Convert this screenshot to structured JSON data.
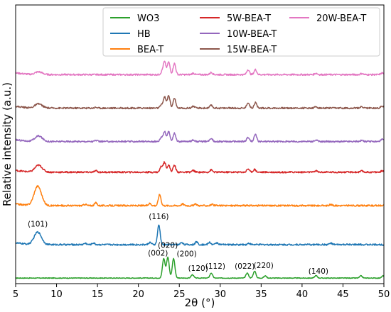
{
  "chart_data": {
    "type": "line",
    "xlabel": "2θ (°)",
    "ylabel": "Relative intensity (a.u.)",
    "xlim": [
      5,
      50
    ],
    "ylim": [
      0,
      100
    ],
    "xticks": [
      5,
      10,
      15,
      20,
      25,
      30,
      35,
      40,
      45,
      50
    ],
    "x_tick_labels": [
      "5",
      "10",
      "15",
      "20",
      "25",
      "30",
      "35",
      "40",
      "45",
      "50"
    ],
    "y_tick_labels_shown": false,
    "grid": false,
    "legend": {
      "placement": "top-right",
      "columns": 3,
      "entries": [
        "WO3",
        "HB",
        "BEA-T",
        "5W-BEA-T",
        "10W-BEA-T",
        "15W-BEA-T",
        "20W-BEA-T"
      ]
    },
    "series": [
      {
        "name": "WO3",
        "color": "#2ca02c",
        "baseline": 2,
        "peaks": [
          [
            23.1,
            7
          ],
          [
            23.6,
            7.5
          ],
          [
            24.3,
            7
          ],
          [
            26.6,
            1.2
          ],
          [
            28.9,
            1.8
          ],
          [
            33.3,
            1.8
          ],
          [
            34.2,
            2.5
          ],
          [
            35.5,
            0.8
          ],
          [
            41.7,
            0.9
          ],
          [
            47.2,
            0.8
          ],
          [
            49.9,
            0.8
          ]
        ]
      },
      {
        "name": "HB",
        "color": "#1f77b4",
        "baseline": 14,
        "peaks": [
          [
            7.7,
            4.5
          ],
          [
            13.5,
            0.5
          ],
          [
            14.5,
            0.6
          ],
          [
            21.4,
            0.8
          ],
          [
            22.5,
            7
          ],
          [
            25.3,
            0.8
          ],
          [
            27.1,
            1.0
          ],
          [
            28.7,
            0.8
          ],
          [
            29.6,
            0.7
          ],
          [
            33.5,
            0.5
          ],
          [
            43.5,
            0.5
          ]
        ]
      },
      {
        "name": "BEA-T",
        "color": "#ff7f0e",
        "baseline": 28,
        "peaks": [
          [
            7.7,
            7
          ],
          [
            13.5,
            0.5
          ],
          [
            14.8,
            1.0
          ],
          [
            21.4,
            0.8
          ],
          [
            22.6,
            4
          ],
          [
            25.4,
            0.6
          ],
          [
            27.0,
            0.5
          ],
          [
            29.0,
            0.4
          ],
          [
            43.5,
            0.4
          ]
        ]
      },
      {
        "name": "5W-BEA-T",
        "color": "#d62728",
        "baseline": 40,
        "peaks": [
          [
            7.8,
            2.5
          ],
          [
            14.8,
            0.5
          ],
          [
            22.8,
            2.0
          ],
          [
            23.2,
            3.5
          ],
          [
            23.7,
            2.5
          ],
          [
            24.4,
            2.5
          ],
          [
            26.7,
            0.6
          ],
          [
            28.9,
            0.8
          ],
          [
            33.4,
            1.2
          ],
          [
            34.2,
            1.0
          ],
          [
            41.7,
            0.5
          ],
          [
            47.3,
            0.4
          ],
          [
            49.8,
            0.5
          ]
        ]
      },
      {
        "name": "10W-BEA-T",
        "color": "#9467bd",
        "baseline": 51,
        "peaks": [
          [
            7.8,
            2.0
          ],
          [
            14.8,
            0.4
          ],
          [
            22.8,
            1.5
          ],
          [
            23.2,
            3.5
          ],
          [
            23.7,
            3.5
          ],
          [
            24.4,
            3.0
          ],
          [
            26.7,
            0.6
          ],
          [
            28.9,
            1.2
          ],
          [
            33.4,
            1.5
          ],
          [
            34.3,
            2.5
          ],
          [
            41.7,
            0.5
          ],
          [
            47.3,
            0.4
          ],
          [
            49.8,
            0.8
          ]
        ]
      },
      {
        "name": "15W-BEA-T",
        "color": "#8c564b",
        "baseline": 63,
        "peaks": [
          [
            7.8,
            1.5
          ],
          [
            14.8,
            0.3
          ],
          [
            22.8,
            1.0
          ],
          [
            23.2,
            4.0
          ],
          [
            23.7,
            4.5
          ],
          [
            24.4,
            3.5
          ],
          [
            26.7,
            0.7
          ],
          [
            28.9,
            1.0
          ],
          [
            33.4,
            2.0
          ],
          [
            34.3,
            2.0
          ],
          [
            41.7,
            0.5
          ],
          [
            47.3,
            0.5
          ],
          [
            49.8,
            0.8
          ]
        ]
      },
      {
        "name": "20W-BEA-T",
        "color": "#e377c2",
        "baseline": 75,
        "peaks": [
          [
            7.8,
            1.0
          ],
          [
            22.9,
            1.0
          ],
          [
            23.2,
            4.5
          ],
          [
            23.7,
            4.5
          ],
          [
            24.4,
            4.0
          ],
          [
            26.7,
            0.5
          ],
          [
            28.9,
            0.8
          ],
          [
            33.4,
            1.8
          ],
          [
            34.3,
            1.8
          ],
          [
            41.7,
            0.5
          ],
          [
            47.3,
            0.4
          ],
          [
            49.8,
            0.6
          ]
        ]
      }
    ],
    "annotations": [
      {
        "text": "(101)",
        "x": 7.7,
        "y": 20.5
      },
      {
        "text": "(116)",
        "x": 22.5,
        "y": 23.2
      },
      {
        "text": "(002)",
        "x": 22.4,
        "y": 10.0
      },
      {
        "text": "(020)",
        "x": 23.6,
        "y": 12.8
      },
      {
        "text": "(200)",
        "x": 25.9,
        "y": 9.8
      },
      {
        "text": "(120)",
        "x": 27.3,
        "y": 4.6
      },
      {
        "text": "(112)",
        "x": 29.4,
        "y": 5.4
      },
      {
        "text": "(022)",
        "x": 33.0,
        "y": 5.4
      },
      {
        "text": "(220)",
        "x": 35.3,
        "y": 5.6
      },
      {
        "text": "(140)",
        "x": 42.0,
        "y": 3.6
      }
    ]
  }
}
